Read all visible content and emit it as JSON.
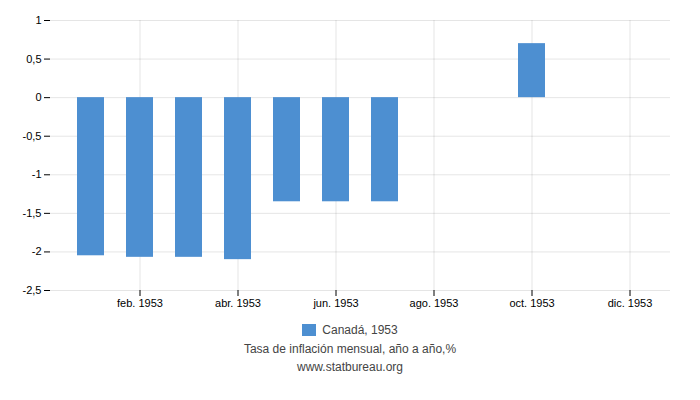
{
  "chart_data": {
    "type": "bar",
    "categories": [
      null,
      "feb. 1953",
      null,
      "abr. 1953",
      null,
      "jun. 1953",
      null,
      "ago. 1953",
      null,
      "oct. 1953",
      null,
      "dic. 1953"
    ],
    "series": [
      {
        "name": "Canadá, 1953",
        "color": "#4d8fd1",
        "values": [
          -2.05,
          -2.07,
          -2.07,
          -2.1,
          -1.35,
          -1.35,
          -1.35,
          null,
          null,
          0.7,
          null,
          null
        ]
      }
    ],
    "ylim": [
      -2.5,
      1.0
    ],
    "yticks": [
      {
        "value": -2.5,
        "label": "-2,5"
      },
      -2,
      {
        "value": -1.5,
        "label": "-1,5"
      },
      -1,
      {
        "value": -0.5,
        "label": "-0,5"
      },
      0,
      {
        "value": 0.5,
        "label": "0,5"
      },
      1
    ],
    "grid": true,
    "legend": "bottom",
    "xlabel": "Tasa de inflación mensual, año a año,%",
    "annotations": [
      "www.statbureau.org"
    ]
  }
}
